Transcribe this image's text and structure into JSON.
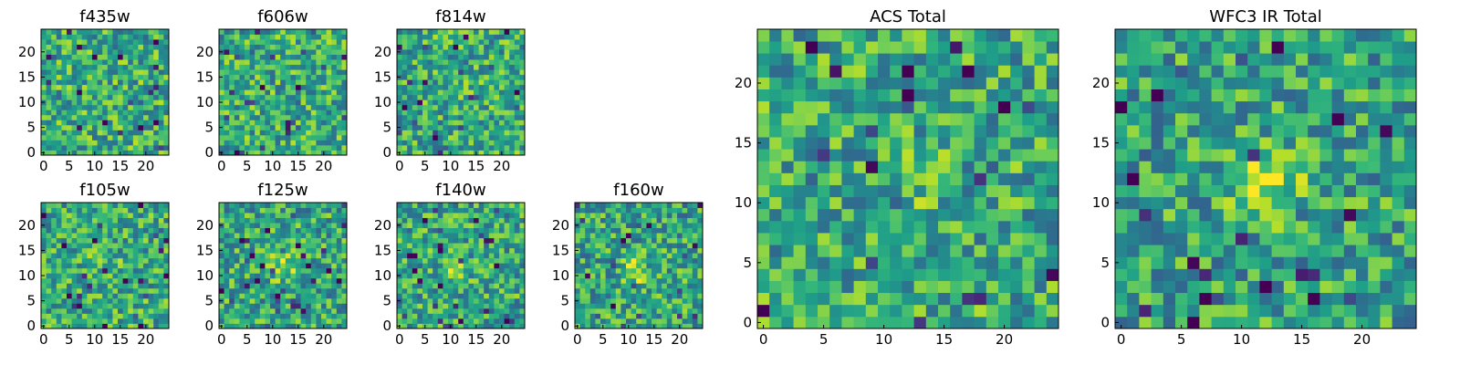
{
  "chart_data": [
    {
      "type": "heatmap",
      "title": "f435w",
      "grid": "25x25",
      "xlim": [
        0,
        24
      ],
      "ylim": [
        0,
        24
      ],
      "xticks": [
        "0",
        "5",
        "10",
        "15",
        "20"
      ],
      "yticks": [
        "0",
        "5",
        "10",
        "15",
        "20"
      ],
      "colormap": "viridis",
      "blob": {
        "x": 12,
        "y": 12,
        "strength": 0.0
      }
    },
    {
      "type": "heatmap",
      "title": "f606w",
      "grid": "25x25",
      "xlim": [
        0,
        24
      ],
      "ylim": [
        0,
        24
      ],
      "xticks": [
        "0",
        "5",
        "10",
        "15",
        "20"
      ],
      "yticks": [
        "0",
        "5",
        "10",
        "15",
        "20"
      ],
      "colormap": "viridis",
      "blob": {
        "x": 12,
        "y": 12,
        "strength": 0.0
      }
    },
    {
      "type": "heatmap",
      "title": "f814w",
      "grid": "25x25",
      "xlim": [
        0,
        24
      ],
      "ylim": [
        0,
        24
      ],
      "xticks": [
        "0",
        "5",
        "10",
        "15",
        "20"
      ],
      "yticks": [
        "0",
        "5",
        "10",
        "15",
        "20"
      ],
      "colormap": "viridis",
      "blob": {
        "x": 12,
        "y": 12,
        "strength": 0.1
      }
    },
    {
      "type": "heatmap",
      "title": "f105w",
      "grid": "25x25",
      "xlim": [
        0,
        24
      ],
      "ylim": [
        0,
        24
      ],
      "xticks": [
        "0",
        "5",
        "10",
        "15",
        "20"
      ],
      "yticks": [
        "0",
        "5",
        "10",
        "15",
        "20"
      ],
      "colormap": "viridis",
      "blob": {
        "x": 12,
        "y": 12,
        "strength": 0.3
      }
    },
    {
      "type": "heatmap",
      "title": "f125w",
      "grid": "25x25",
      "xlim": [
        0,
        24
      ],
      "ylim": [
        0,
        24
      ],
      "xticks": [
        "0",
        "5",
        "10",
        "15",
        "20"
      ],
      "yticks": [
        "0",
        "5",
        "10",
        "15",
        "20"
      ],
      "colormap": "viridis",
      "blob": {
        "x": 12,
        "y": 12,
        "strength": 0.6
      }
    },
    {
      "type": "heatmap",
      "title": "f140w",
      "grid": "25x25",
      "xlim": [
        0,
        24
      ],
      "ylim": [
        0,
        24
      ],
      "xticks": [
        "0",
        "5",
        "10",
        "15",
        "20"
      ],
      "yticks": [
        "0",
        "5",
        "10",
        "15",
        "20"
      ],
      "colormap": "viridis",
      "blob": {
        "x": 11,
        "y": 12,
        "strength": 0.5
      }
    },
    {
      "type": "heatmap",
      "title": "f160w",
      "grid": "25x25",
      "xlim": [
        0,
        24
      ],
      "ylim": [
        0,
        24
      ],
      "xticks": [
        "0",
        "5",
        "10",
        "15",
        "20"
      ],
      "yticks": [
        "0",
        "5",
        "10",
        "15",
        "20"
      ],
      "colormap": "viridis",
      "blob": {
        "x": 12,
        "y": 11,
        "strength": 0.6
      }
    },
    {
      "type": "heatmap",
      "title": "ACS Total",
      "grid": "25x25",
      "xlim": [
        0,
        24
      ],
      "ylim": [
        0,
        24
      ],
      "xticks": [
        "0",
        "5",
        "10",
        "15",
        "20"
      ],
      "yticks": [
        "0",
        "5",
        "10",
        "15",
        "20"
      ],
      "colormap": "viridis",
      "blob": {
        "x": 12,
        "y": 12,
        "strength": 0.2
      }
    },
    {
      "type": "heatmap",
      "title": "WFC3 IR Total",
      "grid": "25x25",
      "xlim": [
        0,
        24
      ],
      "ylim": [
        0,
        24
      ],
      "xticks": [
        "0",
        "5",
        "10",
        "15",
        "20"
      ],
      "yticks": [
        "0",
        "5",
        "10",
        "15",
        "20"
      ],
      "colormap": "viridis",
      "blob": {
        "x": 12,
        "y": 12,
        "strength": 0.8
      }
    }
  ],
  "colors": {
    "frame": "#000000",
    "background": "#ffffff"
  }
}
